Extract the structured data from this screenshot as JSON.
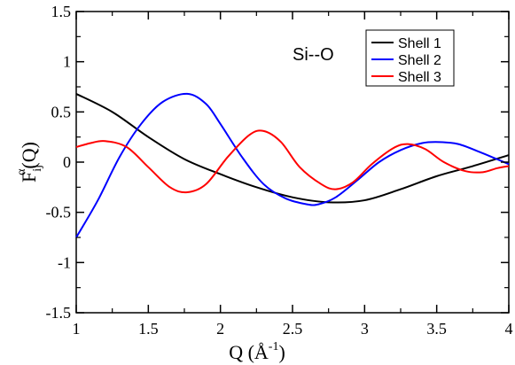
{
  "chart_data": {
    "type": "line",
    "annotation": "Si--O",
    "xlabel": {
      "base": "Q (Å",
      "sup": "-1",
      "close": ")"
    },
    "ylabel": {
      "base": "F",
      "sub": "ij",
      "sup": "α",
      "tail": "(Q)"
    },
    "xlim": [
      1,
      4
    ],
    "ylim": [
      -1.5,
      1.5
    ],
    "xticks": [
      1,
      1.5,
      2,
      2.5,
      3,
      3.5,
      4
    ],
    "xtick_labels": [
      "1",
      "1.5",
      "2",
      "2.5",
      "3",
      "3.5",
      "4"
    ],
    "yticks": [
      -1.5,
      -1,
      -0.5,
      0,
      0.5,
      1,
      1.5
    ],
    "ytick_labels": [
      "-1.5",
      "-1",
      "-0.5",
      "0",
      "0.5",
      "1",
      "1.5"
    ],
    "grid": false,
    "legend_position": "top-right",
    "series": [
      {
        "name": "Shell 1",
        "color": "#000000",
        "x": [
          1.0,
          1.25,
          1.5,
          1.75,
          2.0,
          2.25,
          2.5,
          2.75,
          3.0,
          3.25,
          3.5,
          3.75,
          4.0
        ],
        "y": [
          0.68,
          0.5,
          0.25,
          0.03,
          -0.12,
          -0.25,
          -0.35,
          -0.4,
          -0.38,
          -0.27,
          -0.14,
          -0.04,
          0.07
        ]
      },
      {
        "name": "Shell 2",
        "color": "#0000ff",
        "x": [
          1.0,
          1.15,
          1.3,
          1.45,
          1.6,
          1.77,
          1.9,
          2.0,
          2.15,
          2.3,
          2.45,
          2.6,
          2.68,
          2.8,
          2.95,
          3.1,
          3.25,
          3.4,
          3.52,
          3.65,
          3.8,
          3.9,
          4.0
        ],
        "y": [
          -0.75,
          -0.38,
          0.05,
          0.38,
          0.6,
          0.68,
          0.58,
          0.38,
          0.05,
          -0.22,
          -0.36,
          -0.42,
          -0.42,
          -0.35,
          -0.18,
          0.0,
          0.12,
          0.19,
          0.2,
          0.18,
          0.1,
          0.04,
          -0.02
        ]
      },
      {
        "name": "Shell 3",
        "color": "#ff0000",
        "x": [
          1.0,
          1.1,
          1.2,
          1.35,
          1.5,
          1.65,
          1.77,
          1.9,
          2.05,
          2.2,
          2.3,
          2.42,
          2.55,
          2.7,
          2.8,
          2.92,
          3.05,
          3.2,
          3.3,
          3.42,
          3.55,
          3.7,
          3.82,
          3.92,
          4.0
        ],
        "y": [
          0.15,
          0.19,
          0.21,
          0.15,
          -0.05,
          -0.25,
          -0.3,
          -0.22,
          0.05,
          0.27,
          0.31,
          0.2,
          -0.05,
          -0.22,
          -0.27,
          -0.2,
          -0.02,
          0.14,
          0.18,
          0.13,
          0.0,
          -0.09,
          -0.1,
          -0.06,
          -0.04
        ]
      }
    ]
  }
}
